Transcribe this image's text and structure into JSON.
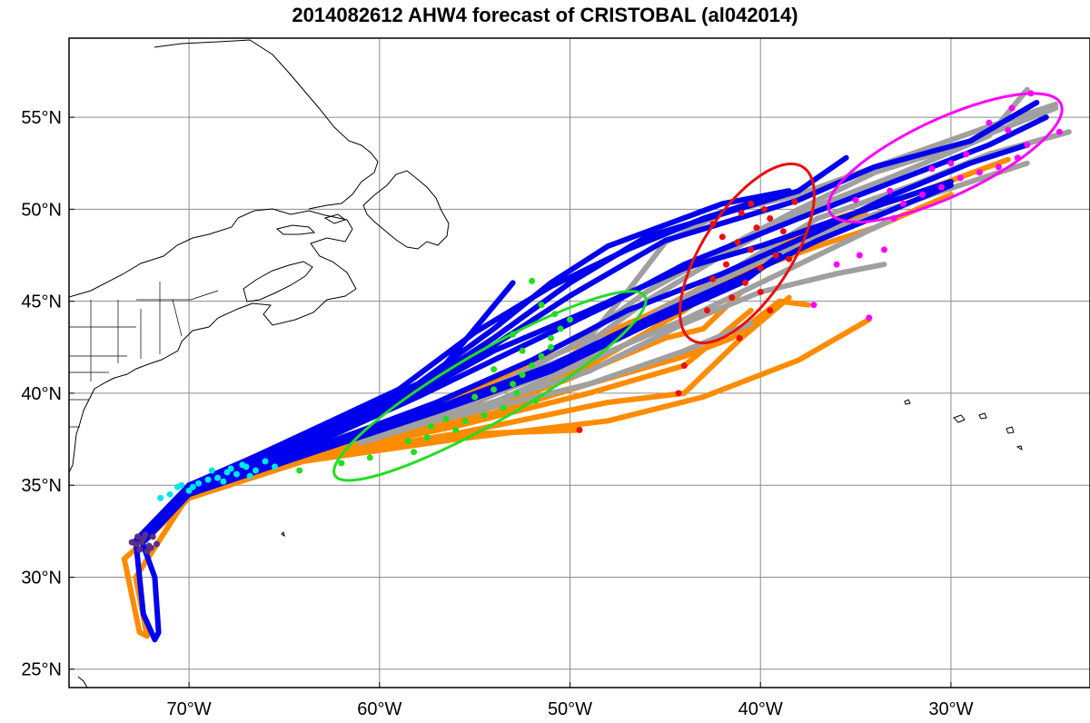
{
  "title": "2014082612 AHW4 forecast of CRISTOBAL (al042014)",
  "map": {
    "projection": "equirectangular",
    "lon_range": [
      -76.3,
      -22.7
    ],
    "lat_range": [
      24,
      59.3
    ],
    "grid": true,
    "lon_ticks": [
      {
        "lon": -70,
        "label": "70°W"
      },
      {
        "lon": -60,
        "label": "60°W"
      },
      {
        "lon": -50,
        "label": "50°W"
      },
      {
        "lon": -40,
        "label": "40°W"
      },
      {
        "lon": -30,
        "label": "30°W"
      }
    ],
    "lat_ticks": [
      {
        "lat": 25,
        "label": "25°N"
      },
      {
        "lat": 30,
        "label": "30°N"
      },
      {
        "lat": 35,
        "label": "35°N"
      },
      {
        "lat": 40,
        "label": "40°N"
      },
      {
        "lat": 45,
        "label": "45°N"
      },
      {
        "lat": 50,
        "label": "50°N"
      },
      {
        "lat": 55,
        "label": "55°N"
      }
    ]
  },
  "colors": {
    "blue_tracks": "#0000ee",
    "orange_tracks": "#ff8c00",
    "gray_tracks": "#a0a0a0",
    "stage_24h": "#5a2d8a",
    "stage_48h": "#00e5ee",
    "stage_72h": "#22dd22",
    "stage_96h": "#e8100e",
    "stage_120h": "#ff00ff",
    "grid": "#8c8c8c",
    "coastline": "#000000"
  },
  "tracks": {
    "blue": [
      [
        [
          -72.5,
          32
        ],
        [
          -71.8,
          30
        ],
        [
          -71.6,
          27
        ],
        [
          -71.8,
          26.6
        ],
        [
          -72.4,
          28
        ],
        [
          -72.8,
          32
        ],
        [
          -70,
          35
        ],
        [
          -64,
          37.5
        ],
        [
          -57,
          41
        ],
        [
          -53,
          46
        ]
      ],
      [
        [
          -72.6,
          32
        ],
        [
          -70,
          35
        ],
        [
          -64,
          37.7
        ],
        [
          -58,
          40.5
        ],
        [
          -54,
          43.5
        ],
        [
          -51,
          46
        ],
        [
          -48,
          48
        ],
        [
          -42,
          50.3
        ],
        [
          -38.5,
          51
        ]
      ],
      [
        [
          -72.6,
          32
        ],
        [
          -70,
          35
        ],
        [
          -64,
          37.5
        ],
        [
          -58,
          40.3
        ],
        [
          -54,
          43
        ],
        [
          -50,
          46
        ],
        [
          -46,
          48.5
        ],
        [
          -38,
          51
        ],
        [
          -35.5,
          52.8
        ]
      ],
      [
        [
          -72.5,
          32
        ],
        [
          -70,
          35
        ],
        [
          -64,
          37.3
        ],
        [
          -58,
          40
        ],
        [
          -54,
          42.6
        ],
        [
          -50,
          45.3
        ],
        [
          -45,
          48.3
        ],
        [
          -38,
          50.5
        ],
        [
          -34,
          52.3
        ],
        [
          -29,
          53.7
        ],
        [
          -25.5,
          55.8
        ]
      ],
      [
        [
          -72.5,
          32
        ],
        [
          -70,
          34.8
        ],
        [
          -64,
          37
        ],
        [
          -58,
          39.8
        ],
        [
          -53,
          42.3
        ],
        [
          -48,
          44.8
        ],
        [
          -44,
          47
        ],
        [
          -38,
          49.5
        ],
        [
          -33,
          51.5
        ],
        [
          -28,
          53.5
        ],
        [
          -25,
          55
        ]
      ],
      [
        [
          -72.4,
          32
        ],
        [
          -70,
          34.7
        ],
        [
          -64,
          36.8
        ],
        [
          -57,
          39.5
        ],
        [
          -52,
          41.8
        ],
        [
          -47,
          44.5
        ],
        [
          -42,
          46.5
        ],
        [
          -37,
          48.8
        ],
        [
          -33,
          50.8
        ],
        [
          -29,
          52.5
        ],
        [
          -26,
          53.5
        ]
      ],
      [
        [
          -72.4,
          32
        ],
        [
          -70,
          34.6
        ],
        [
          -64,
          36.7
        ],
        [
          -57,
          39.2
        ],
        [
          -51,
          41.5
        ],
        [
          -46,
          44
        ],
        [
          -41,
          46.3
        ],
        [
          -37,
          48.3
        ],
        [
          -33,
          50
        ],
        [
          -30,
          51.3
        ]
      ],
      [
        [
          -72.3,
          32
        ],
        [
          -70,
          34.5
        ],
        [
          -64,
          36.6
        ],
        [
          -57,
          39
        ],
        [
          -51,
          41.2
        ],
        [
          -46,
          43.7
        ],
        [
          -41,
          46
        ],
        [
          -39,
          47.5
        ]
      ],
      [
        [
          -72.4,
          32
        ],
        [
          -70,
          34.7
        ],
        [
          -64,
          37.2
        ],
        [
          -58,
          40
        ],
        [
          -54,
          42.3
        ],
        [
          -49,
          44.5
        ],
        [
          -44,
          46.8
        ],
        [
          -40,
          48
        ],
        [
          -35,
          49.8
        ],
        [
          -30,
          51.5
        ]
      ],
      [
        [
          -72.5,
          32
        ],
        [
          -70,
          34.9
        ],
        [
          -65,
          37.3
        ],
        [
          -59,
          40.2
        ],
        [
          -55,
          43.3
        ],
        [
          -51,
          45.8
        ],
        [
          -47,
          47.8
        ],
        [
          -43,
          49.5
        ],
        [
          -40,
          50.5
        ]
      ]
    ],
    "orange": [
      [
        [
          -72.3,
          32
        ],
        [
          -73.4,
          31
        ],
        [
          -73,
          29
        ],
        [
          -72.6,
          27
        ],
        [
          -72.2,
          26.8
        ],
        [
          -72.8,
          30
        ],
        [
          -70,
          34.5
        ],
        [
          -64,
          36.4
        ],
        [
          -55,
          37.8
        ],
        [
          -49.5,
          38
        ]
      ],
      [
        [
          -72.3,
          32
        ],
        [
          -70,
          34.3
        ],
        [
          -64,
          36.3
        ],
        [
          -56,
          37.5
        ],
        [
          -48,
          38.5
        ],
        [
          -43,
          39.8
        ],
        [
          -38,
          41.8
        ],
        [
          -34.3,
          44
        ]
      ],
      [
        [
          -72.3,
          32
        ],
        [
          -70,
          34.3
        ],
        [
          -64,
          36.4
        ],
        [
          -56,
          37.8
        ],
        [
          -48,
          39.5
        ],
        [
          -44,
          40
        ],
        [
          -41,
          43
        ],
        [
          -38.5,
          45.2
        ]
      ],
      [
        [
          -72.4,
          32
        ],
        [
          -70,
          34.5
        ],
        [
          -64,
          36.6
        ],
        [
          -56,
          38.3
        ],
        [
          -49,
          40.5
        ],
        [
          -44,
          42
        ],
        [
          -41.5,
          43
        ],
        [
          -39,
          45
        ],
        [
          -37.5,
          44.8
        ]
      ],
      [
        [
          -72.4,
          32
        ],
        [
          -70,
          34.5
        ],
        [
          -64,
          36.6
        ],
        [
          -56,
          38.7
        ],
        [
          -49,
          41.5
        ],
        [
          -44,
          44.5
        ],
        [
          -40,
          47.5
        ],
        [
          -36,
          49.5
        ],
        [
          -32,
          50.8
        ],
        [
          -27,
          52.7
        ]
      ],
      [
        [
          -72.4,
          32
        ],
        [
          -70,
          34.6
        ],
        [
          -64,
          36.7
        ],
        [
          -56,
          39
        ],
        [
          -50,
          41.8
        ],
        [
          -45,
          44.5
        ],
        [
          -41,
          46.5
        ],
        [
          -37,
          48
        ],
        [
          -34,
          49
        ],
        [
          -30,
          50.8
        ]
      ],
      [
        [
          -72.5,
          32
        ],
        [
          -70,
          34.6
        ],
        [
          -64,
          36.8
        ],
        [
          -57,
          39.3
        ],
        [
          -51,
          42
        ],
        [
          -46,
          44.2
        ],
        [
          -42,
          46.3
        ],
        [
          -38,
          48.2
        ],
        [
          -34.5,
          49.8
        ]
      ],
      [
        [
          -72.4,
          32
        ],
        [
          -70,
          34.5
        ],
        [
          -64,
          36.6
        ],
        [
          -56,
          38.5
        ],
        [
          -50,
          40.8
        ],
        [
          -45,
          43
        ],
        [
          -43,
          43.5
        ],
        [
          -41,
          45.5
        ]
      ],
      [
        [
          -72.4,
          32
        ],
        [
          -70,
          34.4
        ],
        [
          -64,
          36.5
        ],
        [
          -56,
          38.2
        ],
        [
          -49,
          40
        ],
        [
          -44,
          41.5
        ],
        [
          -40.5,
          44.5
        ]
      ]
    ],
    "gray": [
      [
        [
          -63,
          37.3
        ],
        [
          -56,
          39.5
        ],
        [
          -50,
          42
        ],
        [
          -46,
          45
        ],
        [
          -42,
          47.5
        ],
        [
          -38,
          49.8
        ],
        [
          -33,
          51.8
        ],
        [
          -28,
          54
        ],
        [
          -26,
          56.5
        ]
      ],
      [
        [
          -63,
          37.2
        ],
        [
          -56,
          39.3
        ],
        [
          -50,
          41.5
        ],
        [
          -45,
          44.5
        ],
        [
          -41,
          47
        ],
        [
          -37,
          49.5
        ],
        [
          -32,
          51.3
        ],
        [
          -28,
          53
        ],
        [
          -23.8,
          54.2
        ]
      ],
      [
        [
          -62,
          37.3
        ],
        [
          -55,
          39.5
        ],
        [
          -49,
          42
        ],
        [
          -45,
          44.7
        ],
        [
          -40,
          47.2
        ],
        [
          -36,
          49
        ],
        [
          -31,
          50.8
        ],
        [
          -26,
          52.5
        ]
      ],
      [
        [
          -62,
          37.4
        ],
        [
          -55,
          39.8
        ],
        [
          -50,
          42.5
        ],
        [
          -46,
          45.5
        ],
        [
          -42,
          47.8
        ],
        [
          -38,
          50
        ],
        [
          -34,
          52
        ],
        [
          -30,
          53.3
        ],
        [
          -24.5,
          55.5
        ]
      ],
      [
        [
          -61,
          37.3
        ],
        [
          -54,
          39.5
        ],
        [
          -49,
          41.8
        ],
        [
          -44,
          44
        ],
        [
          -40,
          46
        ],
        [
          -36,
          48
        ],
        [
          -33,
          49.5
        ]
      ],
      [
        [
          -62,
          37.3
        ],
        [
          -55,
          39
        ],
        [
          -49,
          40.5
        ],
        [
          -44,
          42.3
        ],
        [
          -40.5,
          43.8
        ]
      ],
      [
        [
          -61,
          37.4
        ],
        [
          -55,
          39.6
        ],
        [
          -50,
          41.8
        ],
        [
          -47,
          45.5
        ],
        [
          -45,
          48.2
        ],
        [
          -42,
          49.8
        ],
        [
          -38,
          50.8
        ],
        [
          -34,
          52.3
        ],
        [
          -28,
          54.5
        ],
        [
          -24.5,
          55.7
        ]
      ],
      [
        [
          -62,
          37.3
        ],
        [
          -55,
          39.2
        ],
        [
          -49,
          41.2
        ],
        [
          -44,
          43.8
        ],
        [
          -40,
          45.5
        ],
        [
          -36,
          46.5
        ],
        [
          -33.5,
          47
        ]
      ]
    ]
  },
  "points": {
    "stage_24h": [
      [
        -72.8,
        31.8
      ],
      [
        -72.4,
        32.1
      ],
      [
        -72.1,
        31.7
      ],
      [
        -72.6,
        31.5
      ],
      [
        -71.9,
        32.2
      ],
      [
        -72.3,
        32.3
      ],
      [
        -73,
        31.9
      ],
      [
        -71.7,
        31.8
      ],
      [
        -72.2,
        31.4
      ],
      [
        -72.7,
        32.2
      ],
      [
        -72,
        31.6
      ],
      [
        -72.5,
        31.9
      ]
    ],
    "stage_48h": [
      [
        -71.5,
        34.3
      ],
      [
        -70.6,
        34.9
      ],
      [
        -69.5,
        35.1
      ],
      [
        -68.5,
        35.4
      ],
      [
        -67.5,
        35.6
      ],
      [
        -66.5,
        35.8
      ],
      [
        -70,
        34.7
      ],
      [
        -69,
        35.3
      ],
      [
        -68,
        35.7
      ],
      [
        -67,
        36
      ],
      [
        -66,
        36.3
      ],
      [
        -71,
        34.5
      ],
      [
        -69.8,
        34.9
      ],
      [
        -68.2,
        35.2
      ],
      [
        -66.8,
        35.5
      ],
      [
        -67.2,
        36.1
      ],
      [
        -65.5,
        36
      ],
      [
        -68.8,
        35.8
      ],
      [
        -70.4,
        35
      ],
      [
        -67.8,
        35.9
      ]
    ],
    "stage_72h": [
      [
        -64.2,
        35.8
      ],
      [
        -62,
        36.2
      ],
      [
        -60.5,
        36.5
      ],
      [
        -58.2,
        36.8
      ],
      [
        -58.5,
        37.4
      ],
      [
        -57.5,
        37.6
      ],
      [
        -56,
        38
      ],
      [
        -55.5,
        38.5
      ],
      [
        -54.5,
        38.8
      ],
      [
        -53.5,
        39.2
      ],
      [
        -55,
        39.8
      ],
      [
        -54,
        40.2
      ],
      [
        -53,
        40.5
      ],
      [
        -52.5,
        41
      ],
      [
        -52,
        41.5
      ],
      [
        -51.5,
        42
      ],
      [
        -51,
        42.5
      ],
      [
        -51,
        43
      ],
      [
        -50.5,
        43.5
      ],
      [
        -50,
        44
      ],
      [
        -51.5,
        44.8
      ],
      [
        -52,
        46.1
      ],
      [
        -53,
        43.2
      ],
      [
        -52.8,
        40
      ],
      [
        -51.8,
        39.6
      ],
      [
        -56.5,
        38.6
      ],
      [
        -57.3,
        38.2
      ],
      [
        -54,
        41.3
      ],
      [
        -52.5,
        42.3
      ],
      [
        -50.8,
        44.3
      ]
    ],
    "stage_96h": [
      [
        -42.8,
        44.5
      ],
      [
        -41.5,
        45.2
      ],
      [
        -40.8,
        46
      ],
      [
        -40,
        46.8
      ],
      [
        -39.2,
        47.5
      ],
      [
        -40.5,
        47.8
      ],
      [
        -41.2,
        48.2
      ],
      [
        -42,
        48.5
      ],
      [
        -40.2,
        49
      ],
      [
        -39.5,
        49.5
      ],
      [
        -39.8,
        50
      ],
      [
        -40.5,
        50.3
      ],
      [
        -38.2,
        50.4
      ],
      [
        -38.8,
        48.8
      ],
      [
        -41.8,
        47
      ],
      [
        -42.5,
        46.2
      ],
      [
        -40,
        45.5
      ],
      [
        -41.1,
        43
      ],
      [
        -44,
        41.5
      ],
      [
        -44.3,
        40
      ],
      [
        -49.5,
        38
      ],
      [
        -39.5,
        44.5
      ],
      [
        -38.5,
        47.3
      ],
      [
        -41,
        49.8
      ],
      [
        -42.5,
        49.2
      ]
    ],
    "stage_120h": [
      [
        -37.2,
        44.8
      ],
      [
        -34.3,
        44.1
      ],
      [
        -36,
        47
      ],
      [
        -34.8,
        47.5
      ],
      [
        -33.5,
        47.8
      ],
      [
        -33,
        49.5
      ],
      [
        -32.5,
        50.3
      ],
      [
        -31.5,
        50.8
      ],
      [
        -30.5,
        51.2
      ],
      [
        -29.5,
        51.7
      ],
      [
        -28.5,
        52
      ],
      [
        -27.5,
        52.3
      ],
      [
        -26.5,
        52.8
      ],
      [
        -26,
        53.5
      ],
      [
        -27,
        54.3
      ],
      [
        -28,
        54.7
      ],
      [
        -26.8,
        55.5
      ],
      [
        -25.8,
        56.3
      ],
      [
        -24.3,
        54.2
      ],
      [
        -30,
        52.5
      ],
      [
        -31,
        52.2
      ],
      [
        -29.2,
        53
      ],
      [
        -33.2,
        51
      ],
      [
        -35,
        50.5
      ]
    ]
  },
  "ellipses": [
    {
      "stage": "stage_72h",
      "center": [
        -54.2,
        40.4
      ],
      "semi_axes_deg": [
        9.4,
        1.9
      ],
      "tilt_deg": -30
    },
    {
      "stage": "stage_96h",
      "center": [
        -40.7,
        47.6
      ],
      "semi_axes_deg": [
        5.4,
        2.4
      ],
      "tilt_deg": -57
    },
    {
      "stage": "stage_120h",
      "center": [
        -30.3,
        52.8
      ],
      "semi_axes_deg": [
        6.7,
        2.1
      ],
      "tilt_deg": -25
    }
  ]
}
